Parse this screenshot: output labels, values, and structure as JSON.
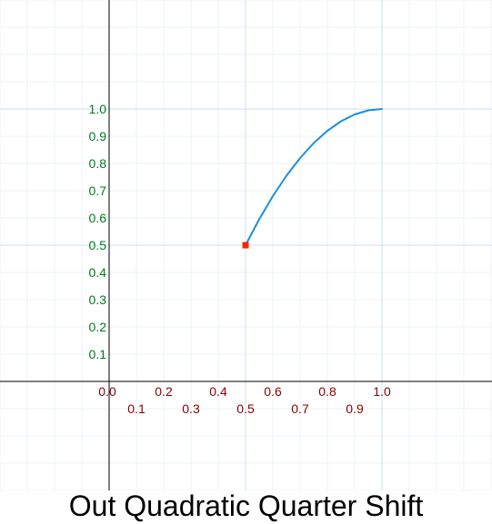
{
  "title": "Out Quadratic Quarter Shift",
  "chart_data": {
    "type": "line",
    "title": "Out Quadratic Quarter Shift",
    "xlabel": "",
    "ylabel": "",
    "xlim": [
      -0.4,
      1.4
    ],
    "ylim": [
      -0.4,
      1.4
    ],
    "grid": true,
    "x_ticks": [
      {
        "value": 0.0,
        "label": "0.0"
      },
      {
        "value": 0.1,
        "label": "0.1"
      },
      {
        "value": 0.2,
        "label": "0.2"
      },
      {
        "value": 0.3,
        "label": "0.3"
      },
      {
        "value": 0.4,
        "label": "0.4"
      },
      {
        "value": 0.5,
        "label": "0.5"
      },
      {
        "value": 0.6,
        "label": "0.6"
      },
      {
        "value": 0.7,
        "label": "0.7"
      },
      {
        "value": 0.8,
        "label": "0.8"
      },
      {
        "value": 0.9,
        "label": "0.9"
      },
      {
        "value": 1.0,
        "label": "1.0"
      }
    ],
    "y_ticks": [
      {
        "value": 0.1,
        "label": "0.1"
      },
      {
        "value": 0.2,
        "label": "0.2"
      },
      {
        "value": 0.3,
        "label": "0.3"
      },
      {
        "value": 0.4,
        "label": "0.4"
      },
      {
        "value": 0.5,
        "label": "0.5"
      },
      {
        "value": 0.6,
        "label": "0.6"
      },
      {
        "value": 0.7,
        "label": "0.7"
      },
      {
        "value": 0.8,
        "label": "0.8"
      },
      {
        "value": 0.9,
        "label": "0.9"
      },
      {
        "value": 1.0,
        "label": "1.0"
      }
    ],
    "series": [
      {
        "color": "#1a8fe0",
        "x": [
          0.5,
          0.55,
          0.6,
          0.65,
          0.7,
          0.75,
          0.8,
          0.85,
          0.9,
          0.95,
          1.0
        ],
        "y": [
          0.5,
          0.595,
          0.68,
          0.755,
          0.82,
          0.875,
          0.92,
          0.955,
          0.98,
          0.995,
          1.0
        ]
      }
    ],
    "marker": {
      "x": 0.5,
      "y": 0.5,
      "color": "#ff2200"
    },
    "colors": {
      "axis": "#000000",
      "major_grid": "#c8e0f0",
      "minor_grid": "#eef3f7",
      "x_tick_label": "#8b0000",
      "y_tick_label": "#007a1f"
    }
  }
}
